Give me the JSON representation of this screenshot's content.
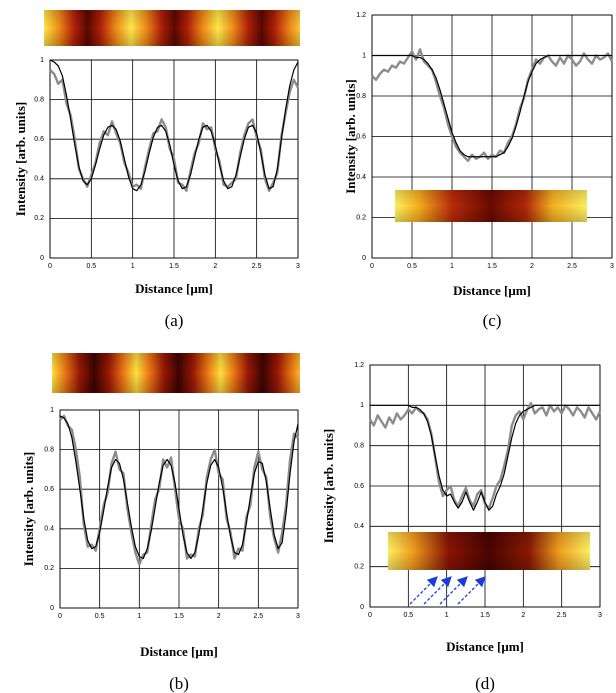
{
  "chart_data": [
    {
      "type": "line",
      "panel_label": "(a)",
      "xlabel": "Distance [μm]",
      "ylabel": "Intensity [arb. units]",
      "xlim": [
        0,
        3
      ],
      "ylim": [
        0,
        1
      ],
      "xticks": [
        0,
        0.5,
        1,
        1.5,
        2,
        2.5,
        3
      ],
      "yticks": [
        0,
        0.2,
        0.4,
        0.6,
        0.8,
        1
      ],
      "grid": true,
      "x": [
        0,
        0.05,
        0.1,
        0.15,
        0.2,
        0.25,
        0.3,
        0.35,
        0.4,
        0.45,
        0.5,
        0.55,
        0.6,
        0.65,
        0.7,
        0.75,
        0.8,
        0.85,
        0.9,
        0.95,
        1,
        1.05,
        1.1,
        1.15,
        1.2,
        1.25,
        1.3,
        1.35,
        1.4,
        1.45,
        1.5,
        1.55,
        1.6,
        1.65,
        1.7,
        1.75,
        1.8,
        1.85,
        1.9,
        1.95,
        2,
        2.05,
        2.1,
        2.15,
        2.2,
        2.25,
        2.3,
        2.35,
        2.4,
        2.45,
        2.5,
        2.55,
        2.6,
        2.65,
        2.7,
        2.75,
        2.8,
        2.85,
        2.9,
        2.95,
        3
      ],
      "series": [
        {
          "color": "#8c8c8c",
          "values": [
            0.95,
            0.93,
            0.88,
            0.9,
            0.78,
            0.72,
            0.6,
            0.45,
            0.4,
            0.36,
            0.42,
            0.48,
            0.58,
            0.64,
            0.62,
            0.69,
            0.63,
            0.58,
            0.48,
            0.43,
            0.36,
            0.37,
            0.35,
            0.46,
            0.55,
            0.63,
            0.64,
            0.7,
            0.66,
            0.55,
            0.5,
            0.38,
            0.37,
            0.34,
            0.44,
            0.53,
            0.58,
            0.68,
            0.65,
            0.66,
            0.55,
            0.49,
            0.37,
            0.36,
            0.38,
            0.4,
            0.53,
            0.62,
            0.68,
            0.7,
            0.61,
            0.55,
            0.4,
            0.34,
            0.38,
            0.43,
            0.62,
            0.73,
            0.84,
            0.9,
            0.86
          ]
        },
        {
          "color": "#000000",
          "values": [
            1.0,
            0.99,
            0.97,
            0.92,
            0.82,
            0.7,
            0.57,
            0.46,
            0.39,
            0.37,
            0.4,
            0.47,
            0.55,
            0.62,
            0.66,
            0.67,
            0.65,
            0.59,
            0.5,
            0.41,
            0.35,
            0.34,
            0.37,
            0.44,
            0.53,
            0.61,
            0.66,
            0.67,
            0.64,
            0.57,
            0.47,
            0.39,
            0.35,
            0.36,
            0.42,
            0.51,
            0.6,
            0.66,
            0.67,
            0.64,
            0.57,
            0.47,
            0.39,
            0.35,
            0.36,
            0.42,
            0.51,
            0.6,
            0.66,
            0.67,
            0.63,
            0.53,
            0.42,
            0.35,
            0.36,
            0.45,
            0.6,
            0.75,
            0.87,
            0.95,
            0.99
          ]
        }
      ]
    },
    {
      "type": "line",
      "panel_label": "(c)",
      "xlabel": "Distance [μm]",
      "ylabel": "Intensity [arb. units]",
      "xlim": [
        0,
        3
      ],
      "ylim": [
        0,
        1.2
      ],
      "xticks": [
        0,
        0.5,
        1,
        1.5,
        2,
        2.5,
        3
      ],
      "yticks": [
        0,
        0.2,
        0.4,
        0.6,
        0.8,
        1,
        1.2
      ],
      "grid": true,
      "x": [
        0,
        0.05,
        0.1,
        0.15,
        0.2,
        0.25,
        0.3,
        0.35,
        0.4,
        0.45,
        0.5,
        0.55,
        0.6,
        0.65,
        0.7,
        0.75,
        0.8,
        0.85,
        0.9,
        0.95,
        1,
        1.05,
        1.1,
        1.15,
        1.2,
        1.25,
        1.3,
        1.35,
        1.4,
        1.45,
        1.5,
        1.55,
        1.6,
        1.65,
        1.7,
        1.75,
        1.8,
        1.85,
        1.9,
        1.95,
        2,
        2.05,
        2.1,
        2.15,
        2.2,
        2.25,
        2.3,
        2.35,
        2.4,
        2.45,
        2.5,
        2.55,
        2.6,
        2.65,
        2.7,
        2.75,
        2.8,
        2.85,
        2.9,
        2.95,
        3
      ],
      "series": [
        {
          "color": "#8c8c8c",
          "values": [
            0.9,
            0.88,
            0.91,
            0.93,
            0.92,
            0.95,
            0.94,
            0.97,
            0.96,
            0.99,
            1.02,
            0.98,
            1.03,
            0.97,
            0.95,
            0.93,
            0.87,
            0.8,
            0.74,
            0.66,
            0.6,
            0.55,
            0.52,
            0.5,
            0.48,
            0.51,
            0.49,
            0.5,
            0.52,
            0.49,
            0.51,
            0.5,
            0.53,
            0.52,
            0.57,
            0.6,
            0.66,
            0.74,
            0.79,
            0.88,
            0.93,
            0.98,
            0.96,
            0.99,
            1.0,
            0.97,
            0.95,
            0.99,
            0.96,
            1.0,
            0.98,
            0.95,
            0.97,
            1.01,
            0.98,
            0.96,
            1.0,
            0.98,
            0.99,
            1.01,
            0.97
          ]
        },
        {
          "color": "#000000",
          "values": [
            1,
            1,
            1,
            1,
            1,
            1,
            1,
            1,
            1,
            1,
            1,
            0.99,
            0.99,
            0.98,
            0.96,
            0.93,
            0.89,
            0.83,
            0.76,
            0.69,
            0.62,
            0.57,
            0.53,
            0.51,
            0.5,
            0.5,
            0.5,
            0.5,
            0.5,
            0.5,
            0.5,
            0.5,
            0.51,
            0.52,
            0.55,
            0.59,
            0.65,
            0.72,
            0.8,
            0.87,
            0.92,
            0.96,
            0.98,
            0.99,
            1.0,
            1,
            1,
            1,
            1,
            1,
            1,
            1,
            1,
            1,
            1,
            1,
            1,
            1,
            1,
            1,
            1
          ]
        }
      ]
    },
    {
      "type": "line",
      "panel_label": "(b)",
      "xlabel": "Distance [μm]",
      "ylabel": "Intensity [arb. units]",
      "xlim": [
        0,
        3
      ],
      "ylim": [
        0,
        1
      ],
      "xticks": [
        0,
        0.5,
        1,
        1.5,
        2,
        2.5,
        3
      ],
      "yticks": [
        0,
        0.2,
        0.4,
        0.6,
        0.8,
        1
      ],
      "grid": true,
      "x": [
        0,
        0.05,
        0.1,
        0.15,
        0.2,
        0.25,
        0.3,
        0.35,
        0.4,
        0.45,
        0.5,
        0.55,
        0.6,
        0.65,
        0.7,
        0.75,
        0.8,
        0.85,
        0.9,
        0.95,
        1,
        1.05,
        1.1,
        1.15,
        1.2,
        1.25,
        1.3,
        1.35,
        1.4,
        1.45,
        1.5,
        1.55,
        1.6,
        1.65,
        1.7,
        1.75,
        1.8,
        1.85,
        1.9,
        1.95,
        2,
        2.05,
        2.1,
        2.15,
        2.2,
        2.25,
        2.3,
        2.35,
        2.4,
        2.45,
        2.5,
        2.55,
        2.6,
        2.65,
        2.7,
        2.75,
        2.8,
        2.85,
        2.9,
        2.95,
        3
      ],
      "series": [
        {
          "color": "#8c8c8c",
          "values": [
            0.95,
            0.97,
            0.92,
            0.9,
            0.8,
            0.66,
            0.42,
            0.31,
            0.32,
            0.29,
            0.4,
            0.52,
            0.58,
            0.73,
            0.79,
            0.7,
            0.68,
            0.5,
            0.38,
            0.28,
            0.22,
            0.27,
            0.28,
            0.42,
            0.55,
            0.6,
            0.75,
            0.71,
            0.76,
            0.6,
            0.45,
            0.4,
            0.25,
            0.27,
            0.26,
            0.4,
            0.47,
            0.66,
            0.75,
            0.8,
            0.68,
            0.65,
            0.45,
            0.38,
            0.25,
            0.3,
            0.29,
            0.46,
            0.52,
            0.71,
            0.79,
            0.7,
            0.66,
            0.46,
            0.35,
            0.28,
            0.38,
            0.52,
            0.75,
            0.88,
            0.86
          ]
        },
        {
          "color": "#000000",
          "values": [
            0.97,
            0.96,
            0.93,
            0.86,
            0.74,
            0.6,
            0.45,
            0.34,
            0.3,
            0.31,
            0.38,
            0.49,
            0.61,
            0.71,
            0.75,
            0.73,
            0.65,
            0.53,
            0.41,
            0.31,
            0.26,
            0.25,
            0.3,
            0.39,
            0.51,
            0.63,
            0.72,
            0.75,
            0.72,
            0.63,
            0.5,
            0.37,
            0.28,
            0.25,
            0.28,
            0.37,
            0.5,
            0.63,
            0.72,
            0.75,
            0.71,
            0.61,
            0.48,
            0.36,
            0.28,
            0.27,
            0.32,
            0.43,
            0.56,
            0.68,
            0.74,
            0.73,
            0.64,
            0.5,
            0.37,
            0.3,
            0.33,
            0.48,
            0.68,
            0.84,
            0.93
          ]
        }
      ]
    },
    {
      "type": "line",
      "panel_label": "(d)",
      "xlabel": "Distance [μm]",
      "ylabel": "Intensity [arb. units]",
      "xlim": [
        0,
        3
      ],
      "ylim": [
        0,
        1.2
      ],
      "xticks": [
        0,
        0.5,
        1,
        1.5,
        2,
        2.5,
        3
      ],
      "yticks": [
        0,
        0.2,
        0.4,
        0.6,
        0.8,
        1,
        1.2
      ],
      "grid": true,
      "x": [
        0,
        0.05,
        0.1,
        0.15,
        0.2,
        0.25,
        0.3,
        0.35,
        0.4,
        0.45,
        0.5,
        0.55,
        0.6,
        0.65,
        0.7,
        0.75,
        0.8,
        0.85,
        0.9,
        0.95,
        1,
        1.05,
        1.1,
        1.15,
        1.2,
        1.25,
        1.3,
        1.35,
        1.4,
        1.45,
        1.5,
        1.55,
        1.6,
        1.65,
        1.7,
        1.75,
        1.8,
        1.85,
        1.9,
        1.95,
        2,
        2.05,
        2.1,
        2.15,
        2.2,
        2.25,
        2.3,
        2.35,
        2.4,
        2.45,
        2.5,
        2.55,
        2.6,
        2.65,
        2.7,
        2.75,
        2.8,
        2.85,
        2.9,
        2.95,
        3
      ],
      "series": [
        {
          "color": "#8c8c8c",
          "values": [
            0.93,
            0.9,
            0.95,
            0.92,
            0.89,
            0.94,
            0.91,
            0.96,
            0.93,
            0.95,
            0.98,
            0.96,
            0.99,
            0.97,
            0.96,
            0.93,
            0.86,
            0.74,
            0.62,
            0.55,
            0.58,
            0.6,
            0.53,
            0.5,
            0.55,
            0.59,
            0.53,
            0.5,
            0.56,
            0.58,
            0.51,
            0.49,
            0.54,
            0.6,
            0.63,
            0.7,
            0.78,
            0.9,
            0.95,
            0.97,
            0.93,
            0.98,
            1.01,
            0.96,
            0.98,
            0.99,
            0.95,
            1.0,
            0.97,
            0.99,
            0.96,
            1.0,
            0.98,
            0.95,
            0.99,
            0.97,
            0.94,
            0.99,
            0.96,
            0.93,
            0.97
          ]
        },
        {
          "color": "#000000",
          "values": [
            1,
            1,
            1,
            1,
            1,
            1,
            1,
            1,
            1,
            1,
            1,
            0.99,
            0.99,
            0.98,
            0.96,
            0.92,
            0.85,
            0.75,
            0.65,
            0.58,
            0.55,
            0.56,
            0.52,
            0.49,
            0.52,
            0.57,
            0.52,
            0.48,
            0.52,
            0.57,
            0.52,
            0.48,
            0.5,
            0.56,
            0.6,
            0.66,
            0.75,
            0.84,
            0.91,
            0.95,
            0.97,
            0.98,
            0.99,
            1,
            1,
            1,
            1,
            1,
            1,
            1,
            1,
            1,
            1,
            1,
            1,
            1,
            1,
            1,
            1,
            1,
            1
          ]
        }
      ]
    }
  ]
}
